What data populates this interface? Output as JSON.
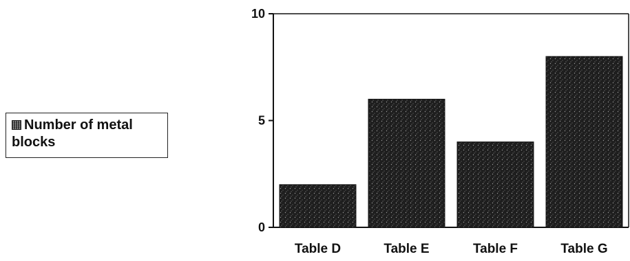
{
  "chart_data": {
    "type": "bar",
    "categories": [
      "Table D",
      "Table E",
      "Table F",
      "Table G"
    ],
    "series": [
      {
        "name": "Number of metal blocks",
        "values": [
          2,
          6,
          4,
          8
        ]
      }
    ],
    "ylim": [
      0,
      10
    ],
    "yticks": [
      0,
      5,
      10
    ],
    "title": "",
    "xlabel": "",
    "ylabel": "",
    "grid": false,
    "legend_position": "left",
    "bar_color": "#1e1e1e"
  }
}
